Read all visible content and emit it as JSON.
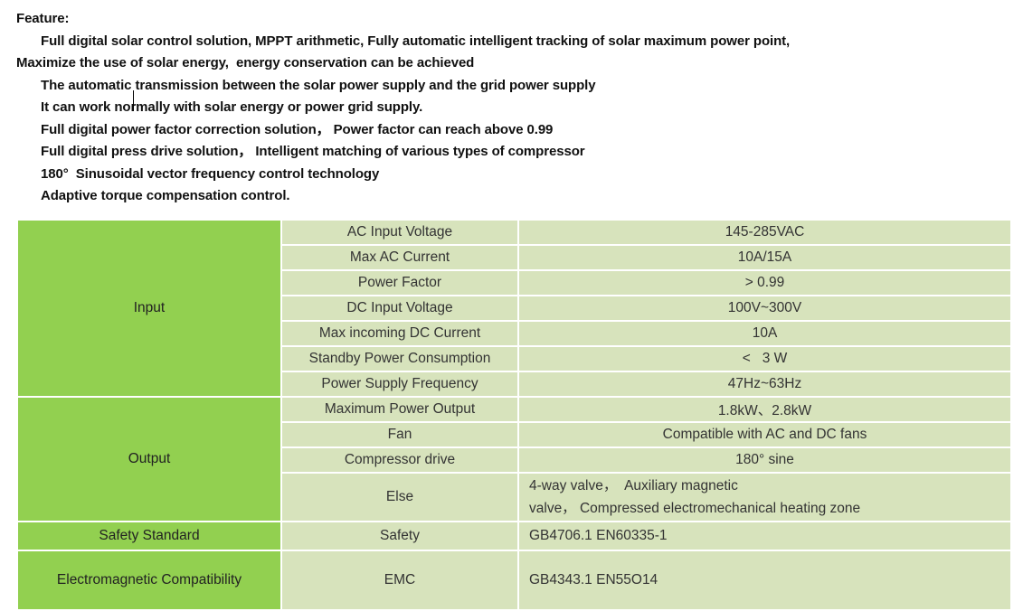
{
  "feature": {
    "heading": "Feature:",
    "lines": [
      {
        "key": "mppt",
        "indent": true,
        "text": "Full digital solar control solution, MPPT arithmetic, Fully automatic intelligent tracking of solar maximum power point,"
      },
      {
        "key": "maximize",
        "indent": false,
        "text": "Maximize the use of solar energy,  energy conservation can be achieved"
      },
      {
        "key": "auto-transmission",
        "indent": true,
        "text": "The automatic transmission between the solar power supply and the grid power supply"
      },
      {
        "key": "work-normally",
        "indent": true,
        "text": "It can work normally with solar energy or power grid supply."
      },
      {
        "key": "power-factor",
        "indent": true,
        "text": "Full digital power factor correction solution， Power factor can reach above 0.99"
      },
      {
        "key": "press-drive",
        "indent": true,
        "text": "Full digital press drive solution， Intelligent matching of various types of compressor"
      },
      {
        "key": "sinusoidal",
        "indent": true,
        "text": "180°  Sinusoidal vector frequency control technology"
      },
      {
        "key": "adaptive-torque",
        "indent": true,
        "text": "Adaptive torque compensation control."
      }
    ]
  },
  "editor": {
    "caret_visible": true
  },
  "table": {
    "colors": {
      "category_bg": "#92D050",
      "cell_bg": "#D7E3BC",
      "border": "#FFFFFF"
    },
    "sections": [
      {
        "key": "input",
        "category": "Input",
        "rows": [
          {
            "key": "ac-input-voltage",
            "param": "AC Input Voltage",
            "value": "145-285VAC"
          },
          {
            "key": "max-ac-current",
            "param": "Max AC Current",
            "value": "10A/15A"
          },
          {
            "key": "power-factor",
            "param": "Power Factor",
            "value": "> 0.99"
          },
          {
            "key": "dc-input-voltage",
            "param": "DC Input Voltage",
            "value": "100V~300V"
          },
          {
            "key": "max-incoming-dc-current",
            "param": "Max incoming DC Current",
            "value": "10A"
          },
          {
            "key": "standby-power-consumption",
            "param": "Standby Power Consumption",
            "value": "<   3 W"
          },
          {
            "key": "power-supply-frequency",
            "param": "Power Supply Frequency",
            "value": "47Hz~63Hz"
          }
        ]
      },
      {
        "key": "output",
        "category": "Output",
        "rows": [
          {
            "key": "maximum-power-output",
            "param": "Maximum Power Output",
            "value": "1.8kW、2.8kW"
          },
          {
            "key": "fan",
            "param": "Fan",
            "value": "Compatible with AC and DC fans"
          },
          {
            "key": "compressor-drive",
            "param": "Compressor drive",
            "value": "180° sine"
          },
          {
            "key": "else",
            "param": "Else",
            "value": "4-way valve，  Auxiliary magnetic\nvalve， Compressed electromechanical heating zone"
          }
        ]
      },
      {
        "key": "safety-standard",
        "category": "Safety Standard",
        "rows": [
          {
            "key": "safety",
            "param": "Safety",
            "value": "GB4706.1 EN60335-1"
          }
        ]
      },
      {
        "key": "emc",
        "category": "Electromagnetic Compatibility",
        "rows": [
          {
            "key": "emc",
            "param": "EMC",
            "value": "GB4343.1 EN55O14"
          }
        ]
      }
    ]
  }
}
